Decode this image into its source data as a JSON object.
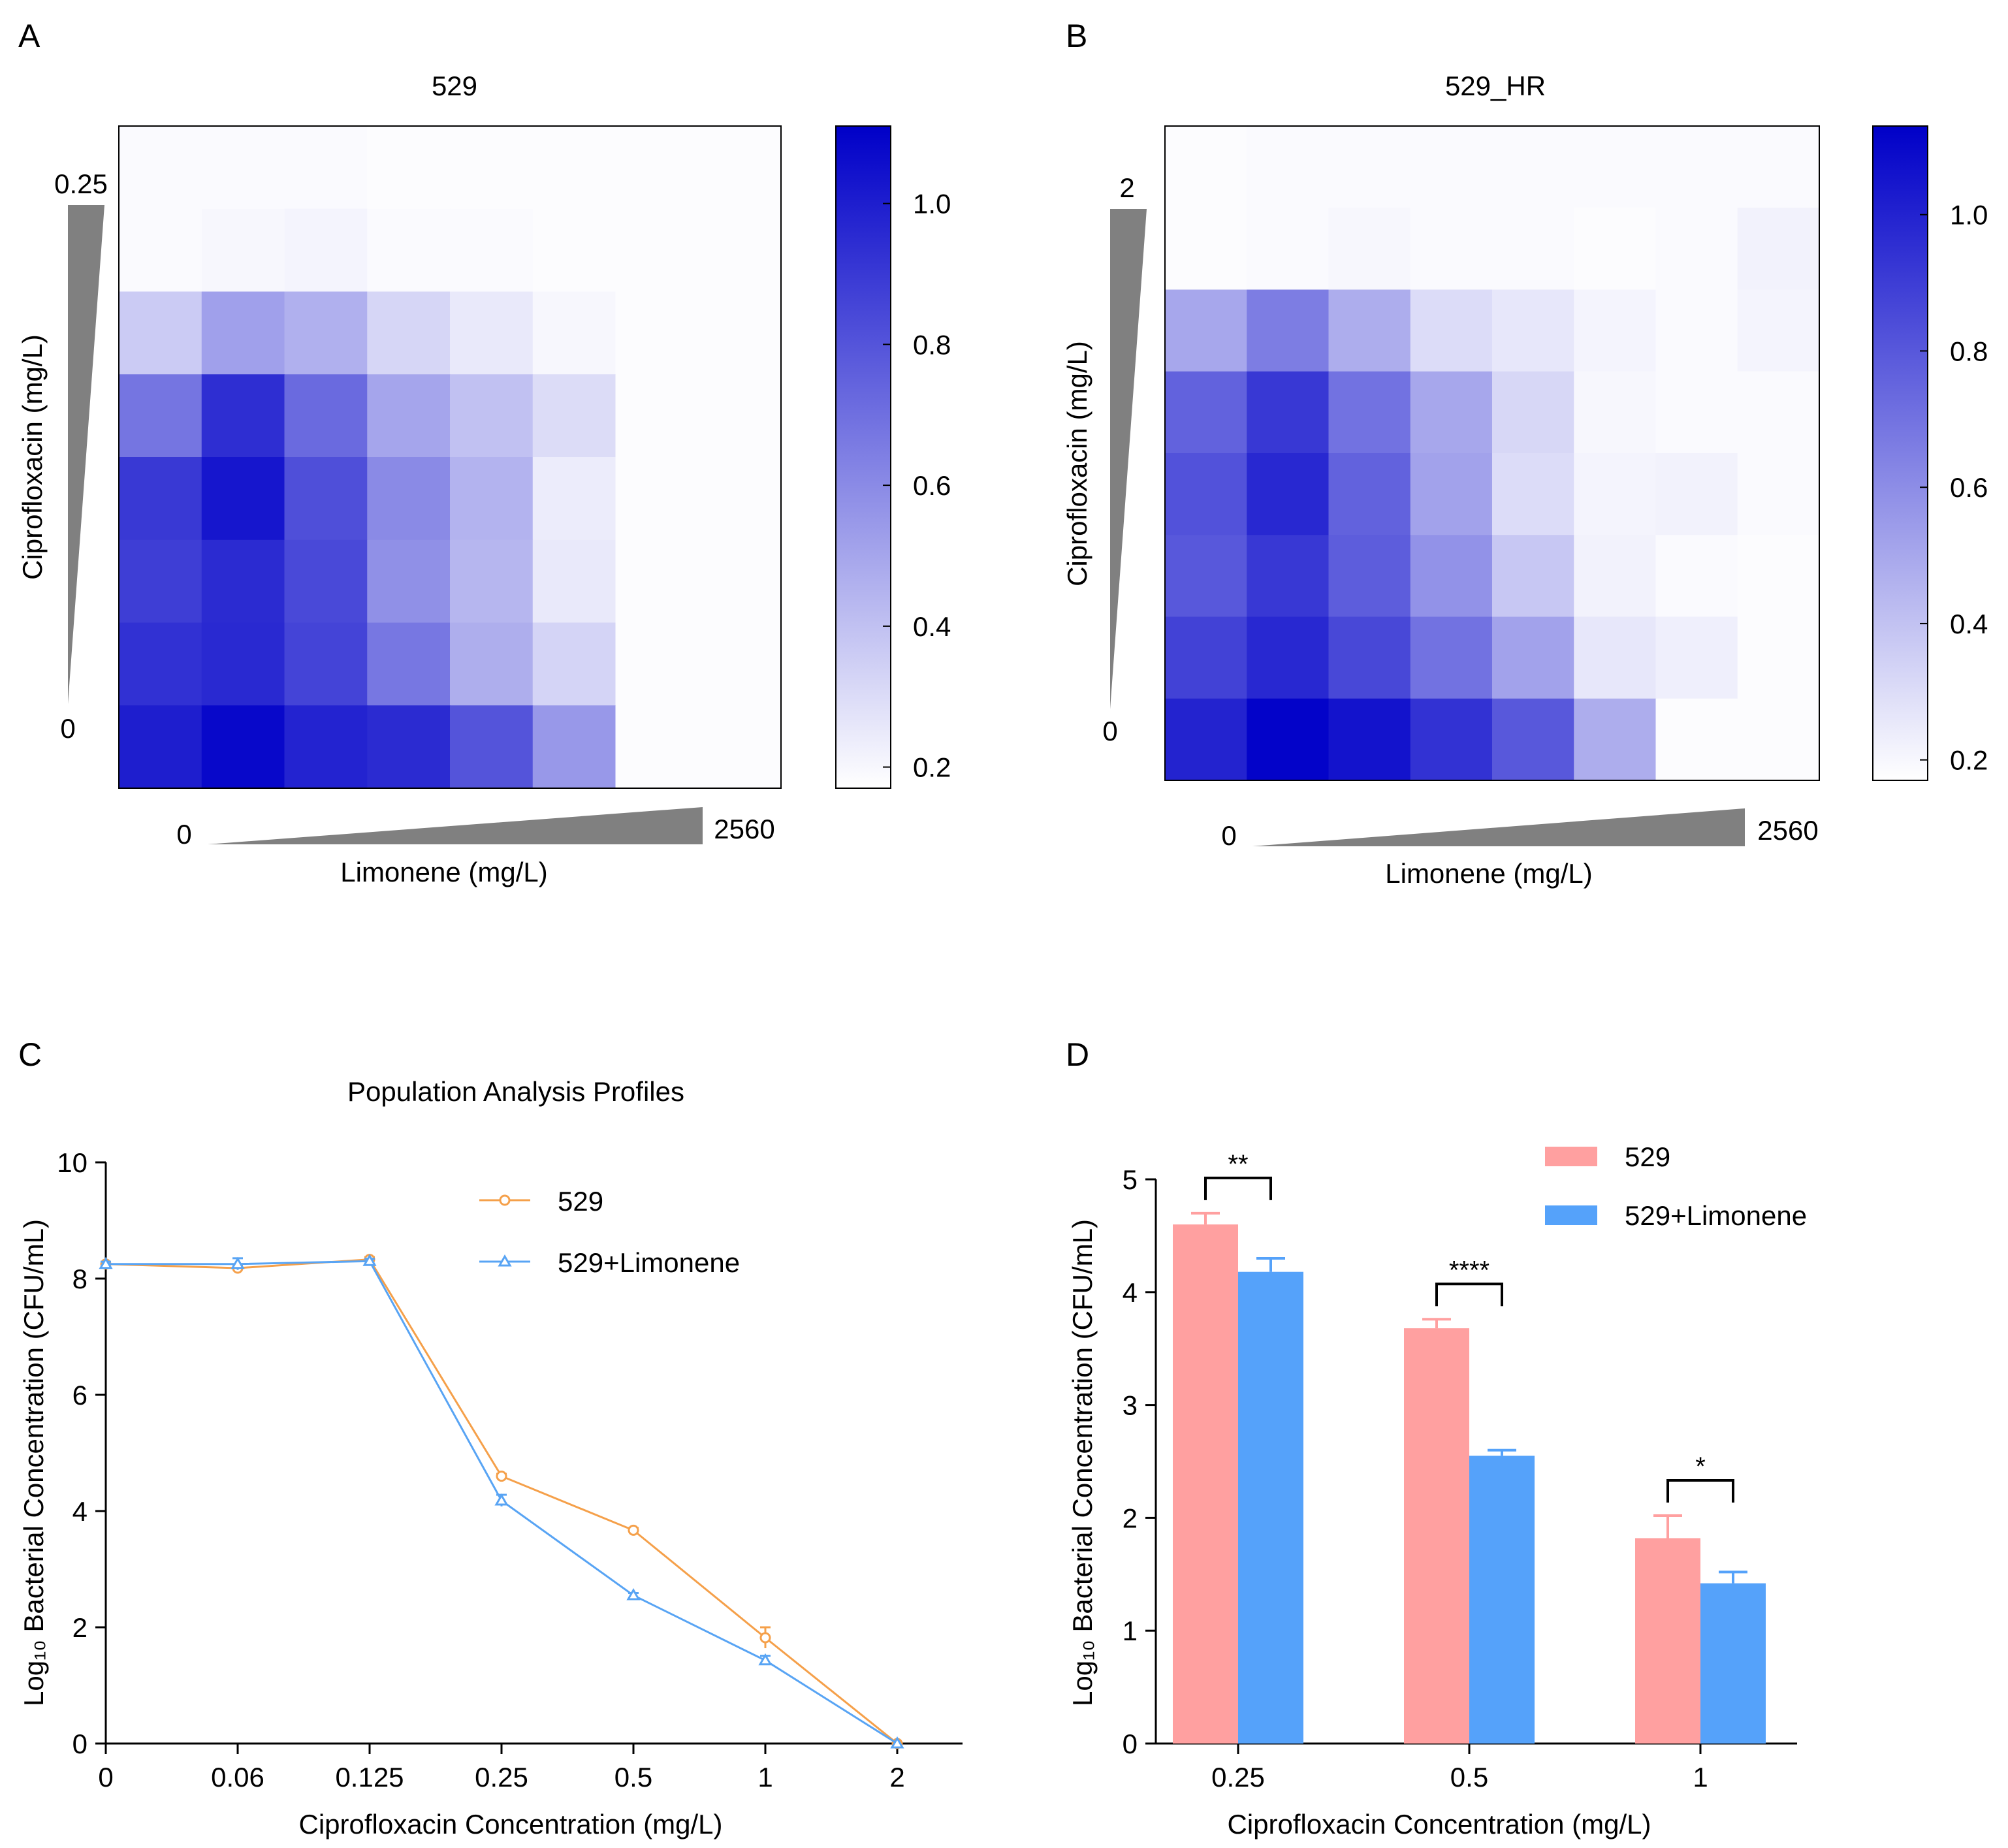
{
  "colors": {
    "heat_high": "#0000c8",
    "heat_low": "#ffffff",
    "line_529": "#f5a04a",
    "line_limonene": "#58a4f4",
    "bar_529": "#ffa0a0",
    "bar_limonene": "#55a2fa",
    "wedge": "#808080",
    "axis": "#000000"
  },
  "chart_data": [
    {
      "panel": "A",
      "type": "heatmap",
      "title": "529",
      "xlabel": "Limonene (mg/L)",
      "ylabel": "Ciprofloxacin (mg/L)",
      "x_start_label": "0",
      "x_end_label": "2560",
      "y_start_label": "0",
      "y_end_label": "0.25",
      "colorbar": {
        "range": [
          0.17,
          1.11
        ],
        "ticks": [
          "0.2",
          "0.4",
          "0.6",
          "0.8",
          "1.0"
        ],
        "tick_values": [
          0.2,
          0.4,
          0.6,
          0.8,
          1.0
        ]
      },
      "matrix": [
        [
          0.19,
          0.19,
          0.19,
          0.18,
          0.18,
          0.18,
          0.18,
          0.18
        ],
        [
          0.19,
          0.2,
          0.21,
          0.19,
          0.19,
          0.18,
          0.18,
          0.18
        ],
        [
          0.36,
          0.52,
          0.46,
          0.32,
          0.25,
          0.2,
          0.18,
          0.18
        ],
        [
          0.68,
          0.94,
          0.72,
          0.5,
          0.4,
          0.3,
          0.18,
          0.18
        ],
        [
          0.9,
          1.03,
          0.82,
          0.6,
          0.45,
          0.24,
          0.18,
          0.18
        ],
        [
          0.88,
          0.95,
          0.84,
          0.58,
          0.44,
          0.25,
          0.18,
          0.18
        ],
        [
          0.93,
          0.96,
          0.86,
          0.67,
          0.47,
          0.33,
          0.18,
          0.18
        ],
        [
          1.0,
          1.08,
          0.98,
          0.95,
          0.8,
          0.55,
          0.18,
          0.18
        ]
      ]
    },
    {
      "panel": "B",
      "type": "heatmap",
      "title": "529_HR",
      "xlabel": "Limonene (mg/L)",
      "ylabel": "Ciprofloxacin (mg/L)",
      "x_start_label": "0",
      "x_end_label": "2560",
      "y_start_label": "0",
      "y_end_label": "2",
      "colorbar": {
        "range": [
          0.17,
          1.13
        ],
        "ticks": [
          "0.2",
          "0.4",
          "0.6",
          "0.8",
          "1.0"
        ],
        "tick_values": [
          0.2,
          0.4,
          0.6,
          0.8,
          1.0
        ]
      },
      "matrix": [
        [
          0.18,
          0.19,
          0.19,
          0.19,
          0.19,
          0.19,
          0.19,
          0.19
        ],
        [
          0.18,
          0.19,
          0.2,
          0.19,
          0.19,
          0.18,
          0.19,
          0.22
        ],
        [
          0.5,
          0.66,
          0.48,
          0.3,
          0.26,
          0.21,
          0.19,
          0.21
        ],
        [
          0.76,
          0.92,
          0.7,
          0.5,
          0.32,
          0.2,
          0.19,
          0.19
        ],
        [
          0.82,
          0.98,
          0.76,
          0.52,
          0.3,
          0.21,
          0.22,
          0.19
        ],
        [
          0.8,
          0.92,
          0.78,
          0.58,
          0.38,
          0.22,
          0.19,
          0.18
        ],
        [
          0.88,
          0.98,
          0.86,
          0.7,
          0.52,
          0.26,
          0.23,
          0.18
        ],
        [
          1.0,
          1.12,
          1.06,
          0.94,
          0.8,
          0.48,
          0.18,
          0.18
        ]
      ]
    },
    {
      "panel": "C",
      "type": "line",
      "title": "Population Analysis Profiles",
      "xlabel": "Ciprofloxacin Concentration (mg/L)",
      "ylabel": "Log₁₀ Bacterial Concentration (CFU/mL)",
      "categories": [
        "0",
        "0.06",
        "0.125",
        "0.25",
        "0.5",
        "1",
        "2"
      ],
      "ylim": [
        0,
        10
      ],
      "yticks": [
        "0",
        "2",
        "4",
        "6",
        "8",
        "10"
      ],
      "ytick_values": [
        0,
        2,
        4,
        6,
        8,
        10
      ],
      "legend": "top-right",
      "series": [
        {
          "name": "529",
          "marker": "circle",
          "values": [
            8.25,
            8.18,
            8.33,
            4.6,
            3.67,
            1.82,
            0.0
          ],
          "errors": [
            0.04,
            0.05,
            0.04,
            0.04,
            0.04,
            0.18,
            0.0
          ]
        },
        {
          "name": "529+Limonene",
          "marker": "triangle",
          "values": [
            8.25,
            8.25,
            8.3,
            4.18,
            2.55,
            1.43,
            0.0
          ],
          "errors": [
            0.04,
            0.1,
            0.04,
            0.1,
            0.04,
            0.08,
            0.0
          ]
        }
      ]
    },
    {
      "panel": "D",
      "type": "bar",
      "xlabel": "Ciprofloxacin Concentration (mg/L)",
      "ylabel": "Log₁₀ Bacterial Concentration (CFU/mL)",
      "categories": [
        "0.25",
        "0.5",
        "1"
      ],
      "ylim": [
        0,
        5
      ],
      "yticks": [
        "0",
        "1",
        "2",
        "3",
        "4",
        "5"
      ],
      "ytick_values": [
        0,
        1,
        2,
        3,
        4,
        5
      ],
      "legend": "top-right",
      "series": [
        {
          "name": "529",
          "values": [
            4.6,
            3.68,
            1.82
          ],
          "errors": [
            0.1,
            0.08,
            0.2
          ]
        },
        {
          "name": "529+Limonene",
          "values": [
            4.18,
            2.55,
            1.42
          ],
          "errors": [
            0.12,
            0.05,
            0.1
          ]
        }
      ],
      "significance": [
        "**",
        "****",
        "*"
      ]
    }
  ],
  "panel_labels": [
    "A",
    "B",
    "C",
    "D"
  ]
}
